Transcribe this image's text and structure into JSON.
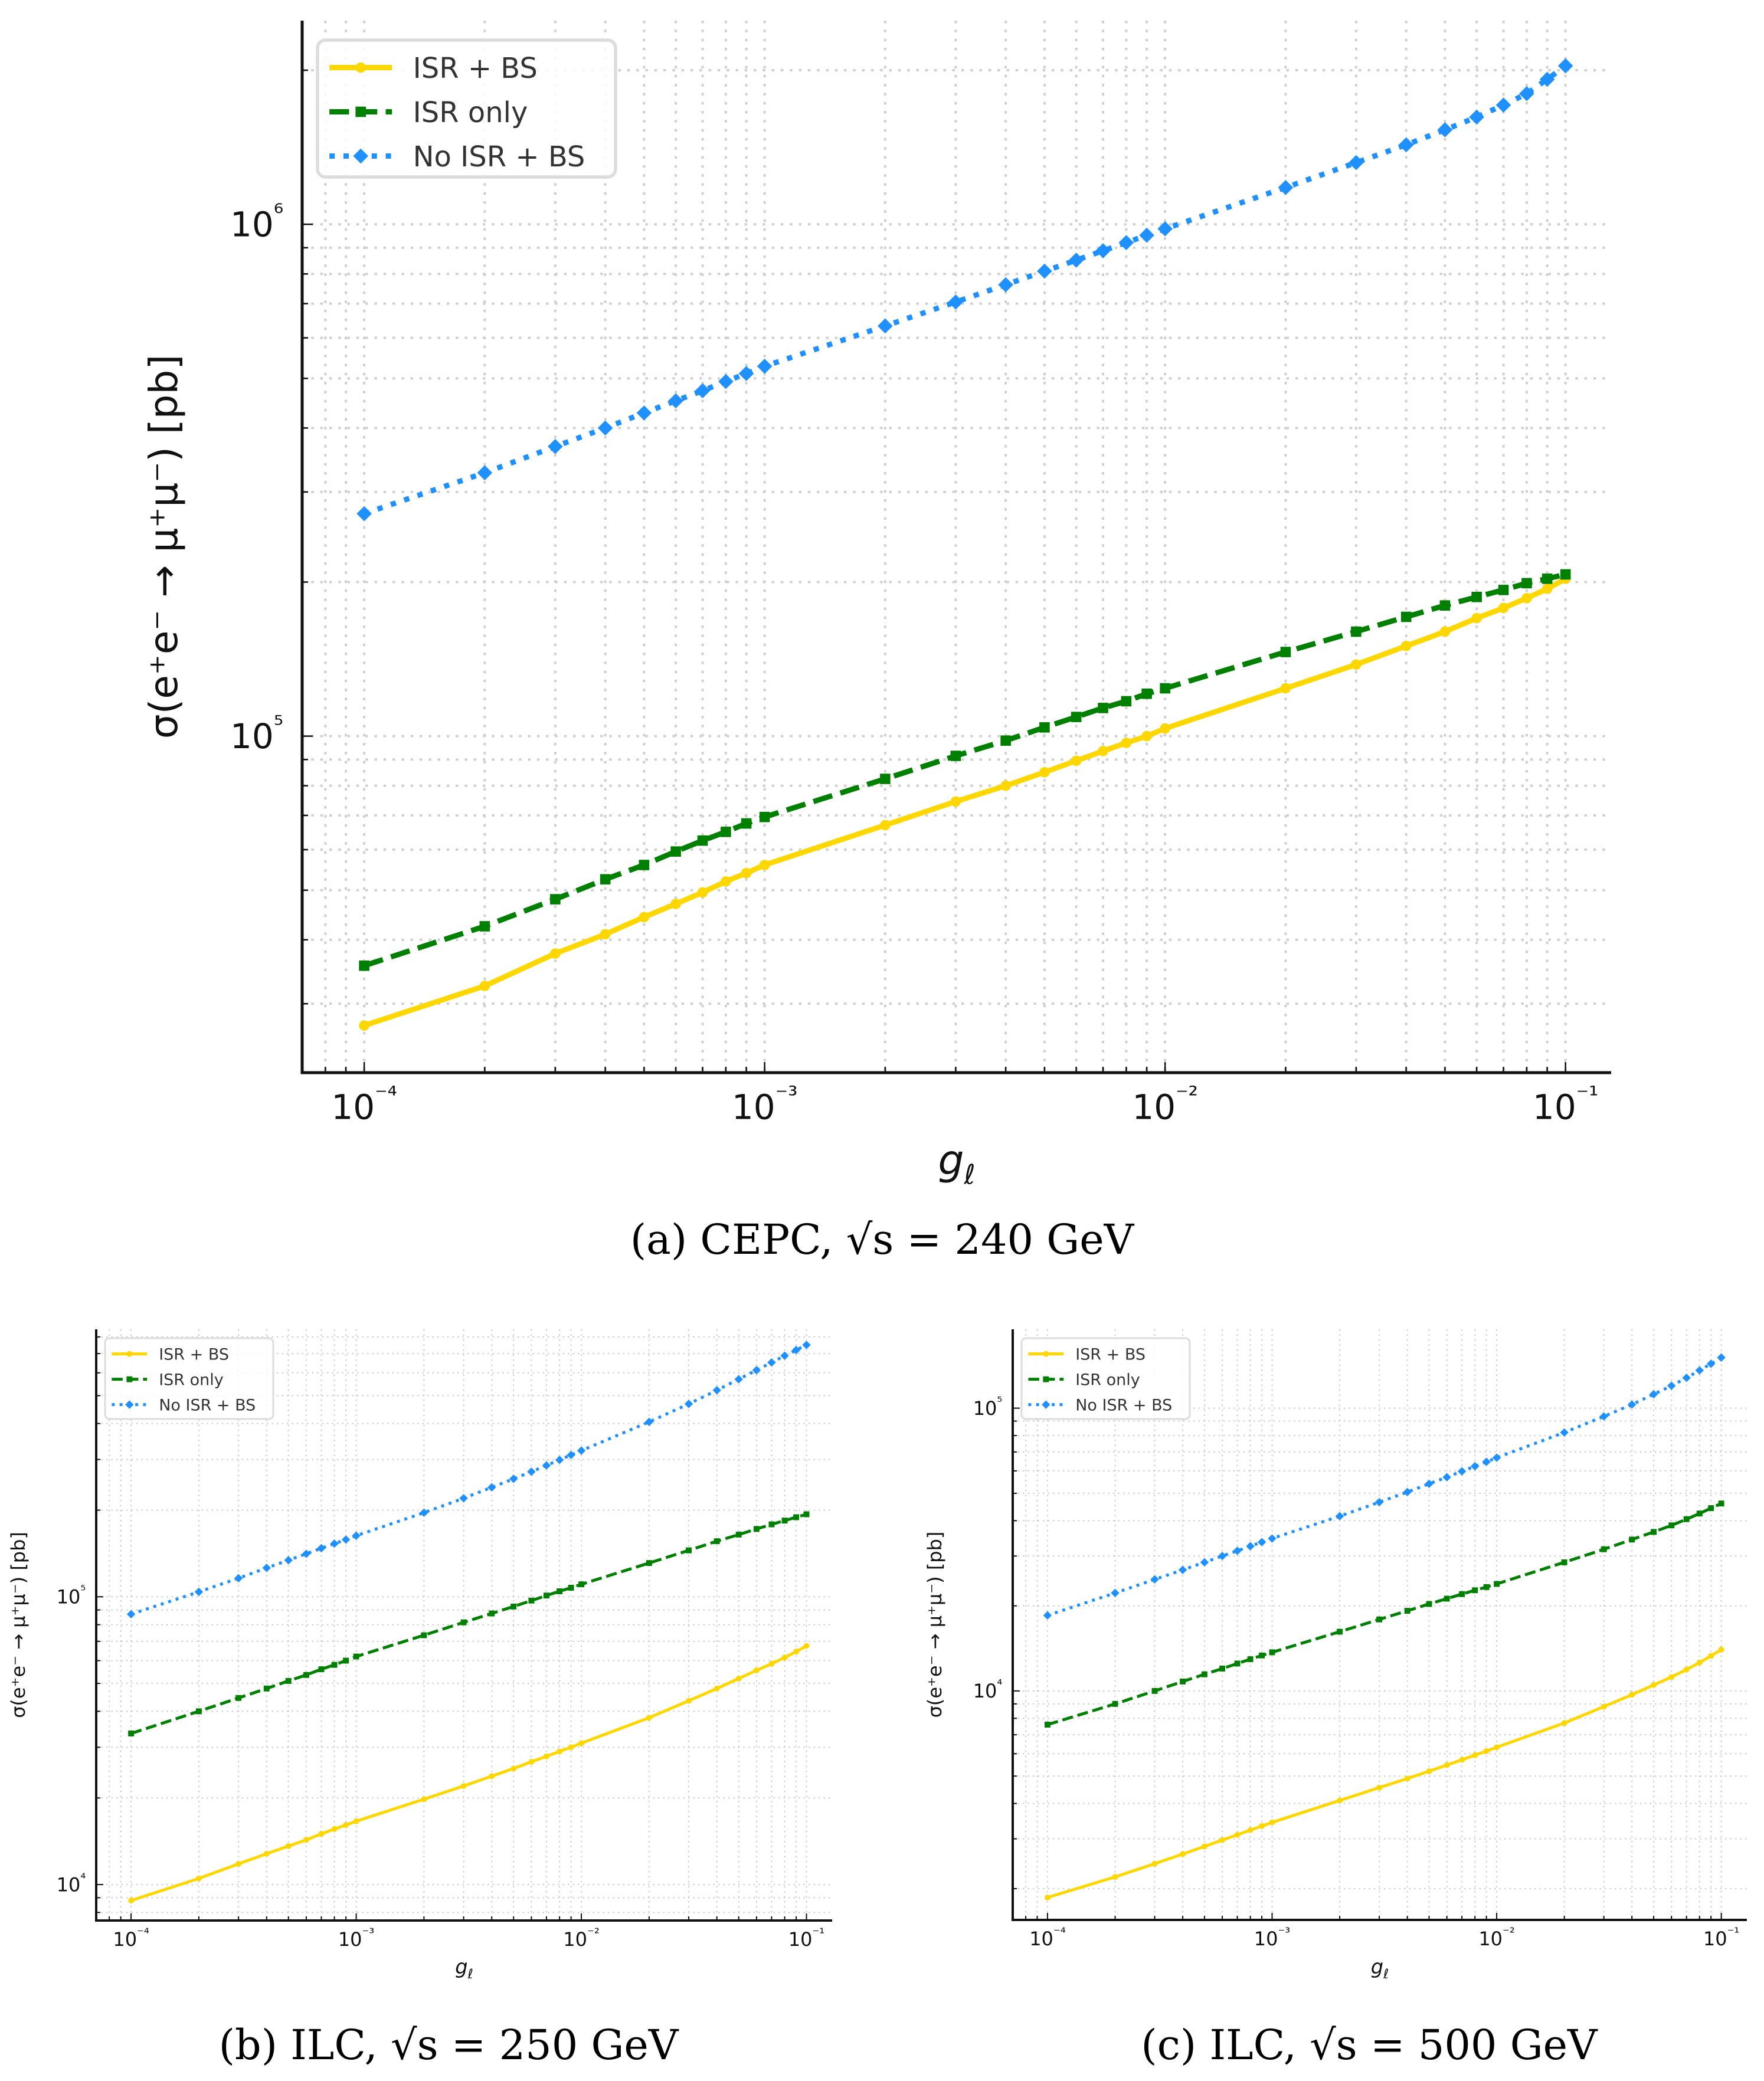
{
  "figure": {
    "captions": [
      "(a) CEPC, √s = 240 GeV",
      "(b) ILC, √s = 250 GeV",
      "(c) ILC, √s = 500 GeV"
    ]
  },
  "series_style": {
    "ISR + BS": {
      "color": "#FFD700",
      "line": "solid",
      "marker": "circle"
    },
    "ISR only": {
      "color": "#008000",
      "line": "dashed",
      "marker": "square"
    },
    "No ISR + BS": {
      "color": "#1E90FF",
      "line": "dotted",
      "marker": "diamond"
    }
  },
  "chart_data": [
    {
      "id": "a",
      "type": "line",
      "title": "",
      "caption": "(a) CEPC, √s = 240 GeV",
      "xlabel": "g_ℓ",
      "ylabel": "σ(e⁺e⁻ → μ⁺μ⁻) [pb]",
      "xscale": "log",
      "yscale": "log",
      "xlim": [
        7e-05,
        0.13
      ],
      "ylim": [
        22000,
        2500000
      ],
      "xticks": [
        0.0001,
        0.001,
        0.01,
        0.1
      ],
      "xtick_labels": [
        "10⁻⁴",
        "10⁻³",
        "10⁻²",
        "10⁻¹"
      ],
      "yticks": [
        100000,
        1000000
      ],
      "ytick_labels": [
        "10⁵",
        "10⁶"
      ],
      "grid": true,
      "legend_position": "top-left",
      "x": [
        0.0001,
        0.0002,
        0.0003,
        0.0004,
        0.0005,
        0.0006,
        0.0007,
        0.0008,
        0.0009,
        0.001,
        0.002,
        0.003,
        0.004,
        0.005,
        0.006,
        0.007,
        0.008,
        0.009,
        0.01,
        0.02,
        0.03,
        0.04,
        0.05,
        0.06,
        0.07,
        0.08,
        0.09,
        0.1
      ],
      "series": [
        {
          "name": "ISR + BS",
          "values": [
            27200,
            32500,
            37600,
            41000,
            44300,
            47000,
            49500,
            52000,
            54000,
            56000,
            67000,
            74500,
            80000,
            85000,
            89500,
            93500,
            97000,
            100000,
            103500,
            124000,
            138000,
            150000,
            160000,
            170000,
            178000,
            186000,
            194000,
            203000
          ]
        },
        {
          "name": "ISR only",
          "values": [
            35600,
            42500,
            48000,
            52500,
            56000,
            59500,
            62500,
            65000,
            67500,
            69500,
            82500,
            91500,
            98000,
            104000,
            109000,
            113500,
            117000,
            121000,
            124000,
            146000,
            160000,
            171000,
            180000,
            187000,
            193000,
            199000,
            203000,
            207000
          ]
        },
        {
          "name": "No ISR + BS",
          "values": [
            272000,
            327000,
            368000,
            400000,
            428000,
            452000,
            473000,
            493000,
            511000,
            528000,
            633000,
            705000,
            762000,
            810000,
            851000,
            888000,
            921000,
            952000,
            980000,
            1180000,
            1320000,
            1430000,
            1530000,
            1620000,
            1710000,
            1800000,
            1920000,
            2040000
          ]
        }
      ]
    },
    {
      "id": "b",
      "type": "line",
      "title": "",
      "caption": "(b) ILC, √s = 250 GeV",
      "xlabel": "g_ℓ",
      "ylabel": "σ(e⁺e⁻ → μ⁺μ⁻) [pb]",
      "xscale": "log",
      "yscale": "log",
      "xlim": [
        7e-05,
        0.13
      ],
      "ylim": [
        7500,
        850000
      ],
      "xticks": [
        0.0001,
        0.001,
        0.01,
        0.1
      ],
      "xtick_labels": [
        "10⁻⁴",
        "10⁻³",
        "10⁻²",
        "10⁻¹"
      ],
      "yticks": [
        10000,
        100000
      ],
      "ytick_labels": [
        "10⁴",
        "10⁵"
      ],
      "grid": true,
      "legend_position": "top-left",
      "x": [
        0.0001,
        0.0002,
        0.0003,
        0.0004,
        0.0005,
        0.0006,
        0.0007,
        0.0008,
        0.0009,
        0.001,
        0.002,
        0.003,
        0.004,
        0.005,
        0.006,
        0.007,
        0.008,
        0.009,
        0.01,
        0.02,
        0.03,
        0.04,
        0.05,
        0.06,
        0.07,
        0.08,
        0.09,
        0.1
      ],
      "series": [
        {
          "name": "ISR + BS",
          "values": [
            8800,
            10500,
            11800,
            12800,
            13600,
            14300,
            15000,
            15600,
            16100,
            16600,
            19800,
            22000,
            23800,
            25300,
            26700,
            27900,
            29000,
            30000,
            31000,
            38000,
            43500,
            48000,
            52000,
            55500,
            58500,
            61500,
            64500,
            67500
          ]
        },
        {
          "name": "ISR only",
          "values": [
            33500,
            40000,
            44500,
            48000,
            51000,
            53500,
            56000,
            58000,
            60000,
            62000,
            73500,
            81500,
            87500,
            92500,
            97000,
            101000,
            104500,
            107500,
            110500,
            131000,
            145000,
            156000,
            164500,
            172000,
            178500,
            184000,
            189000,
            193500
          ]
        },
        {
          "name": "No ISR + BS",
          "values": [
            87000,
            104000,
            116000,
            126000,
            134000,
            141000,
            147500,
            153000,
            158000,
            163000,
            196000,
            220000,
            240000,
            257000,
            272000,
            286000,
            299000,
            311000,
            322000,
            405000,
            468000,
            522000,
            570000,
            613000,
            652000,
            688000,
            720000,
            750000
          ]
        }
      ]
    },
    {
      "id": "c",
      "type": "line",
      "title": "",
      "caption": "(c) ILC, √s = 500 GeV",
      "xlabel": "g_ℓ",
      "ylabel": "σ(e⁺e⁻ → μ⁺μ⁻) [pb]",
      "xscale": "log",
      "yscale": "log",
      "xlim": [
        7e-05,
        0.13
      ],
      "ylim": [
        1550,
        190000
      ],
      "xticks": [
        0.0001,
        0.001,
        0.01,
        0.1
      ],
      "xtick_labels": [
        "10⁻⁴",
        "10⁻³",
        "10⁻²",
        "10⁻¹"
      ],
      "yticks": [
        10000,
        100000
      ],
      "ytick_labels": [
        "10⁴",
        "10⁵"
      ],
      "grid": true,
      "legend_position": "top-left",
      "x": [
        0.0001,
        0.0002,
        0.0003,
        0.0004,
        0.0005,
        0.0006,
        0.0007,
        0.0008,
        0.0009,
        0.001,
        0.002,
        0.003,
        0.004,
        0.005,
        0.006,
        0.007,
        0.008,
        0.009,
        0.01,
        0.02,
        0.03,
        0.04,
        0.05,
        0.06,
        0.07,
        0.08,
        0.09,
        0.1
      ],
      "series": [
        {
          "name": "ISR + BS",
          "values": [
            1860,
            2200,
            2450,
            2650,
            2820,
            2970,
            3100,
            3220,
            3330,
            3430,
            4100,
            4550,
            4900,
            5200,
            5470,
            5710,
            5930,
            6130,
            6320,
            7700,
            8800,
            9700,
            10500,
            11200,
            11900,
            12600,
            13300,
            14000
          ]
        },
        {
          "name": "ISR only",
          "values": [
            7600,
            9000,
            10000,
            10800,
            11450,
            12000,
            12500,
            12950,
            13350,
            13700,
            16200,
            17900,
            19200,
            20300,
            21200,
            22000,
            22700,
            23300,
            23900,
            28500,
            31700,
            34300,
            36500,
            38500,
            40500,
            42400,
            44300,
            46000
          ]
        },
        {
          "name": "No ISR + BS",
          "values": [
            18500,
            22200,
            24800,
            26800,
            28500,
            30000,
            31300,
            32500,
            33600,
            34600,
            41500,
            46500,
            50500,
            54000,
            57000,
            59800,
            62300,
            64600,
            66800,
            82000,
            93500,
            103000,
            112000,
            120000,
            128000,
            136000,
            143500,
            151000
          ]
        }
      ]
    }
  ]
}
